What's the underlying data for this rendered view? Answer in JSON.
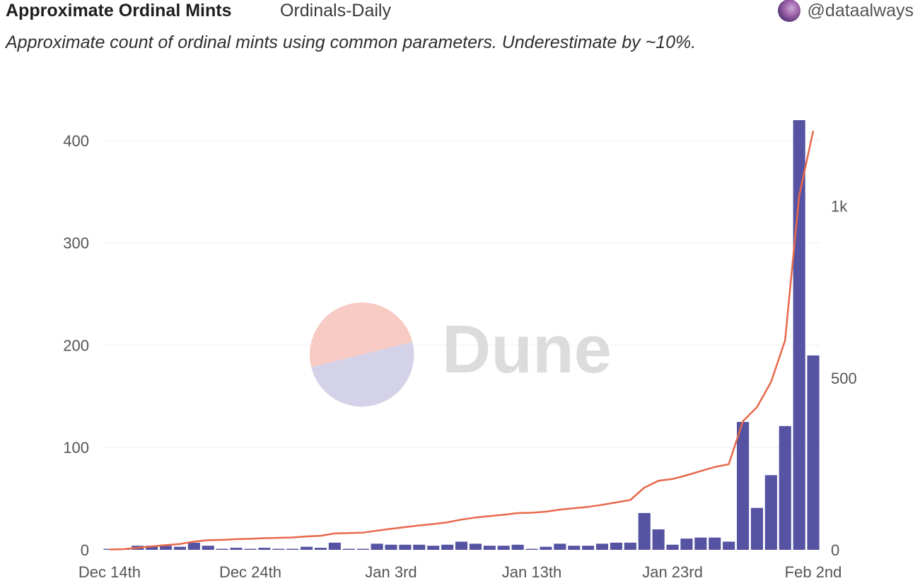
{
  "header": {
    "title": "Approximate Ordinal Mints",
    "tab": "Ordinals-Daily",
    "author": "@dataalways"
  },
  "description": "Approximate count of ordinal mints using common parameters. Underestimate by ~10%.",
  "watermark": {
    "text": "Dune",
    "colors": {
      "top": "#f7cbc4",
      "bottom": "#d3d2e9",
      "text": "#dcdcdc"
    }
  },
  "colors": {
    "bar": "#5553a2",
    "line": "#e8684a",
    "grid": "#eeeeee",
    "tick": "#555555"
  },
  "chart_data": {
    "type": "bar",
    "x_tick_labels": [
      "Dec 14th",
      "Dec 24th",
      "Jan 3rd",
      "Jan 13th",
      "Jan 23rd",
      "Feb 2nd"
    ],
    "y_left_ticks": [
      "0",
      "100",
      "200",
      "300",
      "400"
    ],
    "y_right_ticks": [
      "0",
      "500",
      "1k"
    ],
    "ylim_left": [
      0,
      420
    ],
    "ylim_right": [
      0,
      1250
    ],
    "series": [
      {
        "type": "bar",
        "axis": "left",
        "values": [
          1,
          1,
          4,
          4,
          4,
          3,
          7,
          4,
          1,
          2,
          1,
          2,
          1,
          1,
          3,
          2,
          7,
          1,
          1,
          6,
          5,
          5,
          5,
          4,
          5,
          8,
          6,
          4,
          4,
          5,
          1,
          3,
          6,
          4,
          4,
          6,
          7,
          7,
          36,
          20,
          5,
          11,
          12,
          12,
          8,
          125,
          41,
          73,
          121,
          420,
          190
        ]
      },
      {
        "type": "line",
        "axis": "right",
        "values": [
          1,
          2,
          6,
          10,
          14,
          17,
          24,
          28,
          29,
          31,
          32,
          34,
          35,
          36,
          39,
          41,
          48,
          49,
          50,
          56,
          61,
          66,
          71,
          75,
          80,
          88,
          94,
          98,
          102,
          107,
          108,
          111,
          117,
          121,
          125,
          131,
          138,
          145,
          181,
          201,
          206,
          217,
          229,
          241,
          249,
          374,
          415,
          488,
          609,
          1029,
          1219
        ]
      }
    ]
  }
}
